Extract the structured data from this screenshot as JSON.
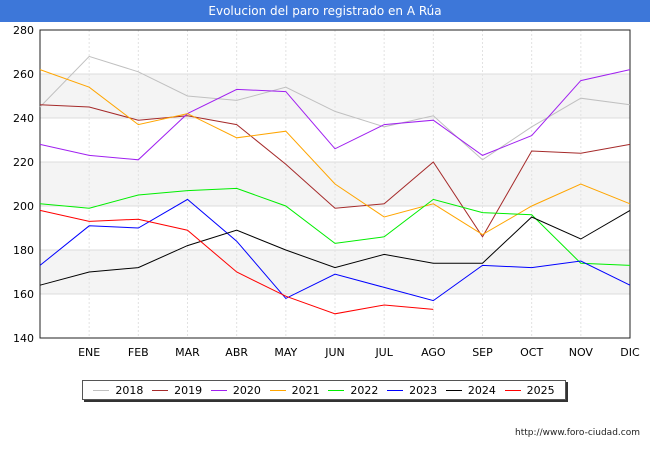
{
  "chart_data": {
    "type": "line",
    "title": "Evolucion del paro registrado en A Rúa",
    "categories": [
      "",
      "ENE",
      "FEB",
      "MAR",
      "ABR",
      "MAY",
      "JUN",
      "JUL",
      "AGO",
      "SEP",
      "OCT",
      "NOV",
      "DIC"
    ],
    "ylim": [
      140,
      280
    ],
    "yticks": [
      140,
      160,
      180,
      200,
      220,
      240,
      260,
      280
    ],
    "series": [
      {
        "name": "2018",
        "color": "#c0c0c0",
        "values": [
          245,
          268,
          261,
          250,
          248,
          254,
          243,
          236,
          241,
          221,
          236,
          249,
          246
        ]
      },
      {
        "name": "2019",
        "color": "#a52a2a",
        "values": [
          246,
          245,
          239,
          241,
          237,
          219,
          199,
          201,
          220,
          186,
          225,
          224,
          228
        ]
      },
      {
        "name": "2020",
        "color": "#a020f0",
        "values": [
          228,
          223,
          221,
          242,
          253,
          252,
          226,
          237,
          239,
          223,
          232,
          257,
          262
        ]
      },
      {
        "name": "2021",
        "color": "#ffa500",
        "values": [
          262,
          254,
          237,
          242,
          231,
          234,
          210,
          195,
          201,
          187,
          200,
          210,
          201
        ]
      },
      {
        "name": "2022",
        "color": "#00ee00",
        "values": [
          201,
          199,
          205,
          207,
          208,
          200,
          183,
          186,
          203,
          197,
          196,
          174,
          173
        ]
      },
      {
        "name": "2023",
        "color": "#0000ff",
        "values": [
          173,
          191,
          190,
          203,
          184,
          158,
          169,
          163,
          157,
          173,
          172,
          175,
          164
        ]
      },
      {
        "name": "2024",
        "color": "#000000",
        "values": [
          164,
          170,
          172,
          182,
          189,
          180,
          172,
          178,
          174,
          174,
          195,
          185,
          198
        ]
      },
      {
        "name": "2025",
        "color": "#ff0000",
        "values": [
          198,
          193,
          194,
          189,
          170,
          159,
          151,
          155,
          153,
          null,
          null,
          null,
          null
        ]
      }
    ]
  },
  "footer": {
    "url": "http://www.foro-ciudad.com"
  }
}
